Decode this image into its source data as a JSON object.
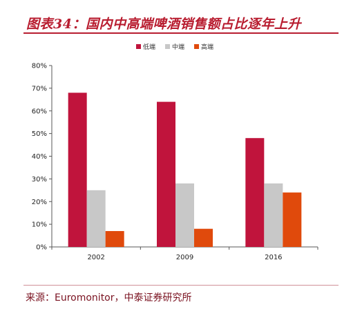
{
  "title": "图表34：国内中高端啤酒销售额占比逐年上升",
  "source": "来源：Euromonitor，中泰证券研究所",
  "chart_data": {
    "type": "bar",
    "categories": [
      "2002",
      "2009",
      "2016"
    ],
    "series": [
      {
        "name": "低端",
        "color": "#c0143c",
        "values": [
          0.68,
          0.64,
          0.48
        ]
      },
      {
        "name": "中端",
        "color": "#c8c8c8",
        "values": [
          0.25,
          0.28,
          0.28
        ]
      },
      {
        "name": "高端",
        "color": "#e04a0c",
        "values": [
          0.07,
          0.08,
          0.24
        ]
      }
    ],
    "ylim": [
      0,
      0.8
    ],
    "yticks": [
      0,
      0.1,
      0.2,
      0.3,
      0.4,
      0.5,
      0.6,
      0.7,
      0.8
    ],
    "ytick_labels": [
      "0%",
      "10%",
      "20%",
      "30%",
      "40%",
      "50%",
      "60%",
      "70%",
      "80%"
    ],
    "grid": false,
    "legend_position": "top-center"
  }
}
